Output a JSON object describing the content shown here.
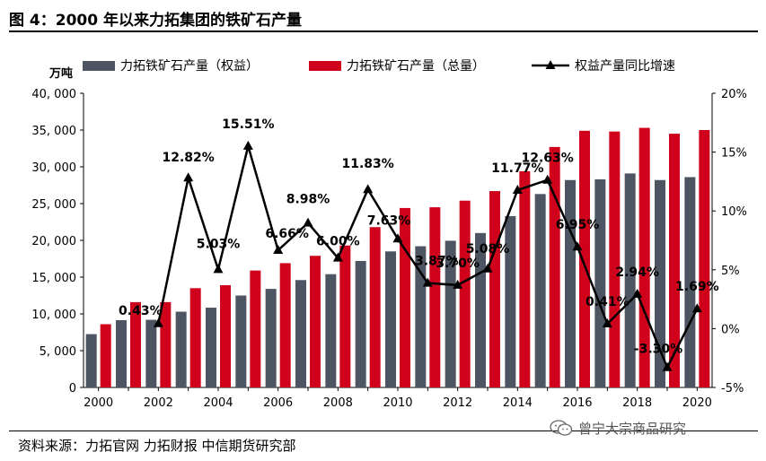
{
  "figure": {
    "title": "图 4：2000 年以来力拓集团的铁矿石产量",
    "source": "资料来源：力拓官网  力拓财报  中信期货研究部",
    "watermark": "曾宁大宗商品研究"
  },
  "colors": {
    "equity_bar": "#4d5562",
    "total_bar": "#d0021b",
    "growth_line": "#000000"
  },
  "chart_data": {
    "type": "bar",
    "unit_label": "万吨",
    "categories": [
      "2000",
      "2001",
      "2002",
      "2003",
      "2004",
      "2005",
      "2006",
      "2007",
      "2008",
      "2009",
      "2010",
      "2011",
      "2012",
      "2013",
      "2014",
      "2015",
      "2016",
      "2017",
      "2018",
      "2019",
      "2020"
    ],
    "x_tick_labels": [
      "2000",
      "2002",
      "2004",
      "2006",
      "2008",
      "2010",
      "2012",
      "2014",
      "2016",
      "2018",
      "2020"
    ],
    "series": [
      {
        "name": "力拓铁矿石产量（权益）",
        "type": "bar",
        "axis": "left",
        "values": [
          7250,
          9150,
          9200,
          10300,
          10850,
          12500,
          13400,
          14600,
          15400,
          17200,
          18500,
          19200,
          19950,
          21000,
          23300,
          26300,
          28200,
          28300,
          29100,
          28200,
          28600
        ]
      },
      {
        "name": "力拓铁矿石产量（总量）",
        "type": "bar",
        "axis": "left",
        "values": [
          8600,
          11600,
          11600,
          13500,
          13900,
          15900,
          16900,
          17900,
          19300,
          21800,
          24400,
          24500,
          25400,
          26700,
          29400,
          32700,
          34900,
          34800,
          35300,
          34500,
          35000
        ]
      },
      {
        "name": "权益产量同比增速",
        "type": "line",
        "axis": "right",
        "values": [
          null,
          null,
          0.43,
          12.82,
          5.03,
          15.51,
          6.66,
          8.98,
          6.0,
          11.83,
          7.63,
          3.87,
          3.7,
          5.08,
          11.77,
          12.63,
          6.95,
          0.41,
          2.94,
          -3.3,
          1.69
        ],
        "labels": [
          null,
          null,
          "0.43%",
          "12.82%",
          "5.03%",
          "15.51%",
          "6.66%",
          "8.98%",
          "6.00%",
          "11.83%",
          "7.63%",
          "3.87%",
          "3.70%",
          "5.08%",
          "11.77%",
          "12.63%",
          "6.95%",
          "0.41%",
          "2.94%",
          "-3.30%",
          "1.69%"
        ]
      }
    ],
    "y_left": {
      "min": 0,
      "max": 40000,
      "ticks": [
        0,
        5000,
        10000,
        15000,
        20000,
        25000,
        30000,
        35000,
        40000
      ],
      "tick_labels": [
        "0",
        "5, 000",
        "10, 000",
        "15, 000",
        "20, 000",
        "25, 000",
        "30, 000",
        "35, 000",
        "40, 000"
      ]
    },
    "y_right": {
      "min": -5,
      "max": 20,
      "ticks": [
        -5,
        0,
        5,
        10,
        15,
        20
      ],
      "tick_labels": [
        "-5%",
        "0%",
        "5%",
        "10%",
        "15%",
        "20%"
      ]
    },
    "legend_position": "top",
    "grid": false
  }
}
